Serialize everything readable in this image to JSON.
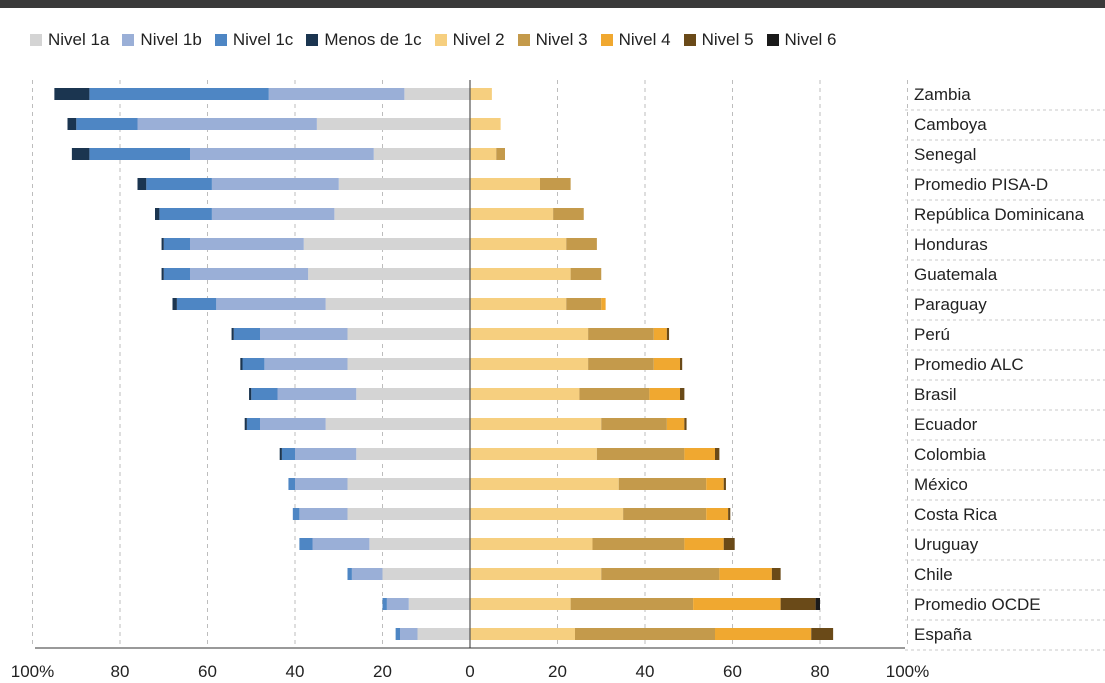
{
  "chart_data": {
    "type": "bar",
    "orientation": "horizontal",
    "stacked": "diverging",
    "categories": [
      "Zambia",
      "Camboya",
      "Senegal",
      "Promedio PISA-D",
      "República Dominicana",
      "Honduras",
      "Guatemala",
      "Paraguay",
      "Perú",
      "Promedio ALC",
      "Brasil",
      "Ecuador",
      "Colombia",
      "México",
      "Costa Rica",
      "Uruguay",
      "Chile",
      "Promedio OCDE",
      "España"
    ],
    "left_series": [
      {
        "name": "Nivel 1a",
        "color": "#d4d4d4",
        "values": [
          15,
          35,
          22,
          30,
          31,
          38,
          37,
          33,
          28,
          28,
          26,
          33,
          26,
          28,
          28,
          23,
          20,
          14,
          12
        ]
      },
      {
        "name": "Nivel 1b",
        "color": "#9aafd7",
        "values": [
          31,
          41,
          42,
          29,
          28,
          26,
          27,
          25,
          20,
          19,
          18,
          15,
          14,
          12,
          11,
          13,
          7,
          5,
          4
        ]
      },
      {
        "name": "Nivel 1c",
        "color": "#4e86c4",
        "values": [
          41,
          14,
          23,
          15,
          12,
          6,
          6,
          9,
          6,
          5,
          6,
          3,
          3,
          1.5,
          1.5,
          3,
          1,
          1,
          1
        ]
      },
      {
        "name": "Menos de 1c",
        "color": "#1b3550",
        "values": [
          8,
          2,
          4,
          2,
          1,
          0.5,
          0.5,
          1,
          0.5,
          0.5,
          0.5,
          0.5,
          0.5,
          0,
          0,
          0,
          0,
          0,
          0
        ]
      }
    ],
    "right_series": [
      {
        "name": "Nivel 2",
        "color": "#f6cf7f",
        "values": [
          5,
          7,
          6,
          16,
          19,
          22,
          23,
          22,
          27,
          27,
          25,
          30,
          29,
          34,
          35,
          28,
          30,
          23,
          24
        ]
      },
      {
        "name": "Nivel 3",
        "color": "#c49a4b",
        "values": [
          0,
          0,
          2,
          7,
          7,
          7,
          7,
          8,
          15,
          15,
          16,
          15,
          20,
          20,
          19,
          21,
          27,
          28,
          32
        ]
      },
      {
        "name": "Nivel 4",
        "color": "#f0a830",
        "values": [
          0,
          0,
          0,
          0,
          0,
          0,
          0,
          1,
          3,
          6,
          7,
          4,
          7,
          4,
          5,
          9,
          12,
          20,
          22
        ]
      },
      {
        "name": "Nivel 5",
        "color": "#6a4a18",
        "values": [
          0,
          0,
          0,
          0,
          0,
          0,
          0,
          0,
          0.5,
          0.5,
          1,
          0.5,
          1,
          0.5,
          0.5,
          2.5,
          2,
          8,
          5
        ]
      },
      {
        "name": "Nivel 6",
        "color": "#1a1a1a",
        "values": [
          0,
          0,
          0,
          0,
          0,
          0,
          0,
          0,
          0,
          0,
          0,
          0,
          0,
          0,
          0,
          0,
          0,
          1,
          0
        ]
      }
    ],
    "legend": [
      {
        "name": "Nivel 1a",
        "color": "#d4d4d4"
      },
      {
        "name": "Nivel 1b",
        "color": "#9aafd7"
      },
      {
        "name": "Nivel 1c",
        "color": "#4e86c4"
      },
      {
        "name": "Menos de 1c",
        "color": "#1b3550"
      },
      {
        "name": "Nivel 2",
        "color": "#f6cf7f"
      },
      {
        "name": "Nivel 3",
        "color": "#c49a4b"
      },
      {
        "name": "Nivel 4",
        "color": "#f0a830"
      },
      {
        "name": "Nivel 5",
        "color": "#6a4a18"
      },
      {
        "name": "Nivel 6",
        "color": "#1a1a1a"
      }
    ],
    "legend_position": "top",
    "xlim": [
      -100,
      100
    ],
    "x_ticks": [
      -100,
      -80,
      -60,
      -40,
      -20,
      0,
      20,
      40,
      60,
      80,
      100
    ],
    "x_tick_labels": [
      "100%",
      "80",
      "60",
      "40",
      "20",
      "0",
      "20",
      "40",
      "60",
      "80",
      "100%"
    ],
    "grid": "vertical dashed"
  }
}
